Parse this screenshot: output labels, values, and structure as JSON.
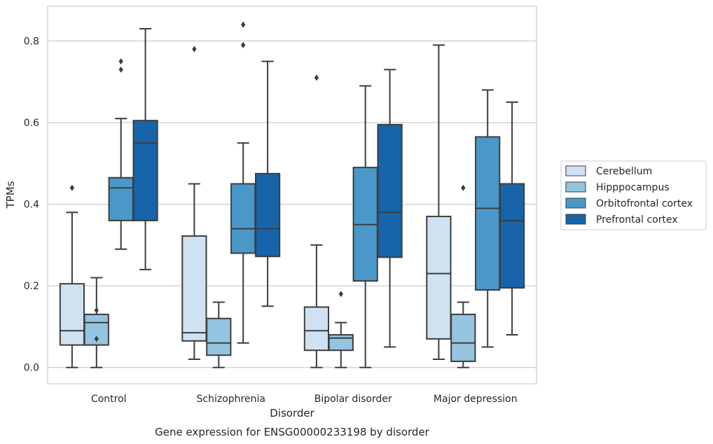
{
  "chart_data": {
    "type": "box",
    "caption": "Gene expression for ENSG00000233198 by disorder",
    "xlabel": "Disorder",
    "ylabel": "TPMs",
    "ylim": [
      -0.04,
      0.885
    ],
    "yticks": [
      0.0,
      0.2,
      0.4,
      0.6,
      0.8
    ],
    "ytick_labels": [
      "0.0",
      "0.2",
      "0.4",
      "0.6",
      "0.8"
    ],
    "grid": "horizontal",
    "legend_position": "right",
    "categories": [
      "Control",
      "Schizophrenia",
      "Bipolar disorder",
      "Major depression"
    ],
    "series": [
      {
        "name": "Cerebellum",
        "color": "#d0e1f2",
        "boxes": [
          {
            "whislo": 0.0,
            "q1": 0.055,
            "med": 0.09,
            "q3": 0.205,
            "whishi": 0.38,
            "fliers": [
              0.44
            ]
          },
          {
            "whislo": 0.02,
            "q1": 0.065,
            "med": 0.085,
            "q3": 0.322,
            "whishi": 0.45,
            "fliers": [
              0.78
            ]
          },
          {
            "whislo": 0.0,
            "q1": 0.042,
            "med": 0.09,
            "q3": 0.148,
            "whishi": 0.3,
            "fliers": [
              0.71
            ]
          },
          {
            "whislo": 0.02,
            "q1": 0.07,
            "med": 0.23,
            "q3": 0.37,
            "whishi": 0.79,
            "fliers": []
          }
        ]
      },
      {
        "name": "Hipppocampus",
        "color": "#94c4df",
        "boxes": [
          {
            "whislo": 0.0,
            "q1": 0.055,
            "med": 0.11,
            "q3": 0.13,
            "whishi": 0.22,
            "fliers": [
              0.14,
              0.07
            ]
          },
          {
            "whislo": 0.0,
            "q1": 0.03,
            "med": 0.06,
            "q3": 0.12,
            "whishi": 0.16,
            "fliers": []
          },
          {
            "whislo": 0.0,
            "q1": 0.042,
            "med": 0.072,
            "q3": 0.08,
            "whishi": 0.11,
            "fliers": [
              0.18
            ]
          },
          {
            "whislo": 0.0,
            "q1": 0.015,
            "med": 0.06,
            "q3": 0.13,
            "whishi": 0.16,
            "fliers": [
              0.44
            ]
          }
        ]
      },
      {
        "name": "Orbitofrontal cortex",
        "color": "#4a98c9",
        "boxes": [
          {
            "whislo": 0.29,
            "q1": 0.36,
            "med": 0.44,
            "q3": 0.465,
            "whishi": 0.61,
            "fliers": [
              0.75,
              0.73
            ]
          },
          {
            "whislo": 0.06,
            "q1": 0.28,
            "med": 0.34,
            "q3": 0.45,
            "whishi": 0.55,
            "fliers": [
              0.84,
              0.79
            ]
          },
          {
            "whislo": 0.0,
            "q1": 0.212,
            "med": 0.35,
            "q3": 0.49,
            "whishi": 0.69,
            "fliers": []
          },
          {
            "whislo": 0.05,
            "q1": 0.19,
            "med": 0.39,
            "q3": 0.565,
            "whishi": 0.68,
            "fliers": []
          }
        ]
      },
      {
        "name": "Prefrontal cortex",
        "color": "#1764ab",
        "boxes": [
          {
            "whislo": 0.24,
            "q1": 0.36,
            "med": 0.55,
            "q3": 0.605,
            "whishi": 0.83,
            "fliers": []
          },
          {
            "whislo": 0.15,
            "q1": 0.272,
            "med": 0.34,
            "q3": 0.475,
            "whishi": 0.75,
            "fliers": []
          },
          {
            "whislo": 0.05,
            "q1": 0.27,
            "med": 0.38,
            "q3": 0.595,
            "whishi": 0.73,
            "fliers": []
          },
          {
            "whislo": 0.08,
            "q1": 0.195,
            "med": 0.36,
            "q3": 0.45,
            "whishi": 0.65,
            "fliers": []
          }
        ]
      }
    ]
  }
}
